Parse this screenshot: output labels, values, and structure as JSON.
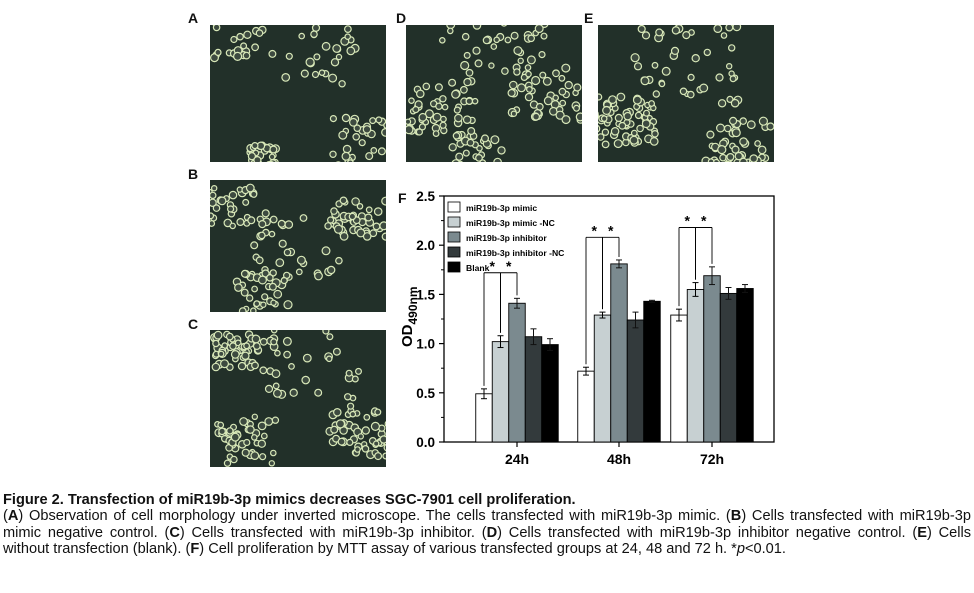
{
  "panels": {
    "A": {
      "label": "A"
    },
    "B": {
      "label": "B"
    },
    "C": {
      "label": "C"
    },
    "D": {
      "label": "D"
    },
    "E": {
      "label": "E"
    },
    "F": {
      "label": "F"
    }
  },
  "chart_data": {
    "type": "bar",
    "categories": [
      "24h",
      "48h",
      "72h"
    ],
    "ylabel": "OD",
    "ylabel_subscript": "490nm",
    "ylim": [
      0,
      2.5
    ],
    "yticks": [
      "0.0",
      "0.5",
      "1.0",
      "1.5",
      "2.0",
      "2.5"
    ],
    "legend_position": "top-left",
    "series": [
      {
        "name": "miR19b-3p mimic",
        "color": "#ffffff",
        "values": [
          0.49,
          0.72,
          1.29
        ],
        "errors": [
          0.05,
          0.04,
          0.06
        ]
      },
      {
        "name": "miR19b-3p mimic -NC",
        "color": "#c7d0d2",
        "values": [
          1.02,
          1.29,
          1.55
        ],
        "errors": [
          0.06,
          0.03,
          0.07
        ]
      },
      {
        "name": "miR19b-3p inhibitor",
        "color": "#7b8a8f",
        "values": [
          1.41,
          1.81,
          1.69
        ],
        "errors": [
          0.05,
          0.04,
          0.09
        ]
      },
      {
        "name": "miR19b-3p inhibitor -NC",
        "color": "#333a3c",
        "values": [
          1.07,
          1.24,
          1.51
        ],
        "errors": [
          0.08,
          0.08,
          0.06
        ]
      },
      {
        "name": "Blank",
        "color": "#000000",
        "values": [
          0.99,
          1.43,
          1.56
        ],
        "errors": [
          0.06,
          0.01,
          0.04
        ]
      }
    ],
    "significance_marker": "*"
  },
  "caption": {
    "title": "Figure 2. Transfection of miR19b-3p mimics decreases SGC-7901 cell proliferation.",
    "segments": [
      {
        "text": "(",
        "bold": false
      },
      {
        "text": "A",
        "bold": true
      },
      {
        "text": ") Observation of cell morphology under inverted microscope. The cells transfected with miR19b-3p mimic. (",
        "bold": false
      },
      {
        "text": "B",
        "bold": true
      },
      {
        "text": ") Cells transfected with miR19b-3p mimic negative control. (",
        "bold": false
      },
      {
        "text": "C",
        "bold": true
      },
      {
        "text": ") Cells transfected with miR19b-3p inhibitor. (",
        "bold": false
      },
      {
        "text": "D",
        "bold": true
      },
      {
        "text": ") Cells transfected with miR19b-3p inhibitor negative control. (",
        "bold": false
      },
      {
        "text": "E",
        "bold": true
      },
      {
        "text": ") Cells without transfection (blank). (",
        "bold": false
      },
      {
        "text": "F",
        "bold": true
      },
      {
        "text": ") Cell proliferation by MTT assay of various transfected groups at 24, 48 and 72 h. *",
        "bold": false
      },
      {
        "text": "p",
        "italic": true
      },
      {
        "text": "<0.01.",
        "bold": false
      }
    ]
  }
}
